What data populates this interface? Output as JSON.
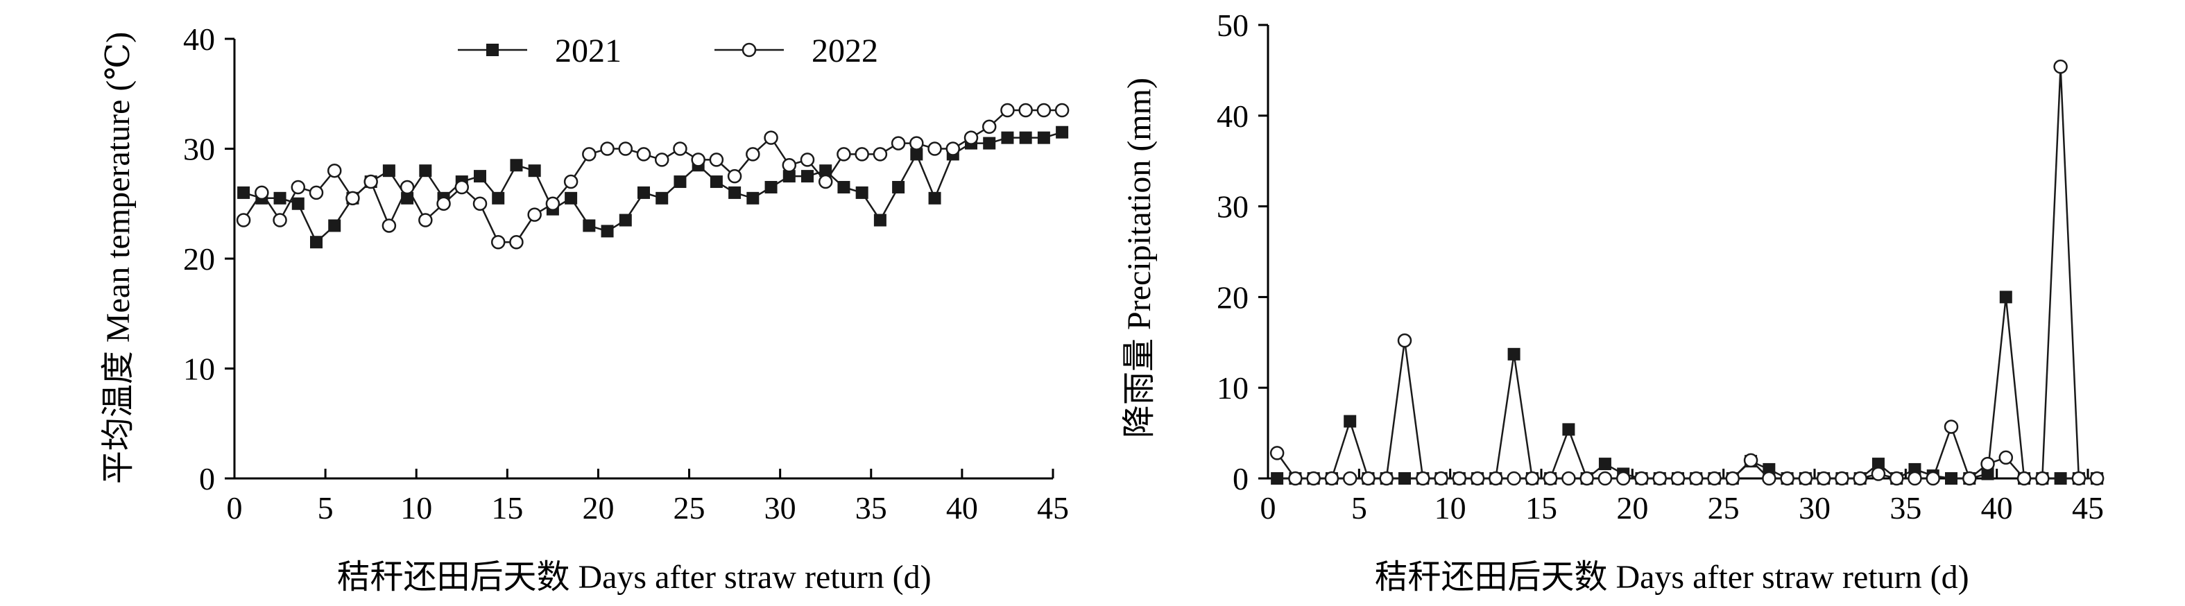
{
  "chart_data": [
    {
      "type": "line",
      "xlabel": "秸秆还田后天数 Days after straw return (d)",
      "ylabel": "平均温度 Mean temperature (℃)",
      "xlim": [
        0,
        45
      ],
      "ylim": [
        0,
        40
      ],
      "xticks": [
        0,
        5,
        10,
        15,
        20,
        25,
        30,
        35,
        40,
        45
      ],
      "yticks": [
        0,
        10,
        20,
        30,
        40
      ],
      "grid": false,
      "legend_position": "top",
      "x": [
        0.5,
        1.5,
        2.5,
        3.5,
        4.5,
        5.5,
        6.5,
        7.5,
        8.5,
        9.5,
        10.5,
        11.5,
        12.5,
        13.5,
        14.5,
        15.5,
        16.5,
        17.5,
        18.5,
        19.5,
        20.5,
        21.5,
        22.5,
        23.5,
        24.5,
        25.5,
        26.5,
        27.5,
        28.5,
        29.5,
        30.5,
        31.5,
        32.5,
        33.5,
        34.5,
        35.5,
        36.5,
        37.5,
        38.5,
        39.5,
        40.5,
        41.5,
        42.5,
        43.5,
        44.5,
        45.5
      ],
      "series": [
        {
          "name": "2021",
          "marker": "filled-square",
          "values": [
            26,
            25.5,
            25.5,
            25,
            21.5,
            23,
            25.5,
            27,
            28,
            25.5,
            28,
            25.5,
            27,
            27.5,
            25.5,
            28.5,
            28,
            24.5,
            25.5,
            23,
            22.5,
            23.5,
            26,
            25.5,
            27,
            28.5,
            27,
            26,
            25.5,
            26.5,
            27.5,
            27.5,
            28,
            26.5,
            26,
            23.5,
            26.5,
            29.5,
            25.5,
            29.5,
            30.5,
            30.5,
            31,
            31,
            31,
            31.5
          ]
        },
        {
          "name": "2022",
          "marker": "open-circle",
          "values": [
            23.5,
            26,
            23.5,
            26.5,
            26,
            28,
            25.5,
            27,
            23,
            26.5,
            23.5,
            25,
            26.5,
            25,
            21.5,
            21.5,
            24,
            25,
            27,
            29.5,
            30,
            30,
            29.5,
            29,
            30,
            29,
            29,
            27.5,
            29.5,
            31,
            28.5,
            29,
            27,
            29.5,
            29.5,
            29.5,
            30.5,
            30.5,
            30,
            30,
            31,
            32,
            33.5,
            33.5,
            33.5,
            33.5
          ]
        }
      ]
    },
    {
      "type": "line",
      "xlabel": "秸秆还田后天数 Days after straw return (d)",
      "ylabel": "降雨量 Precipitation (mm)",
      "xlim": [
        0,
        45
      ],
      "ylim": [
        0,
        50
      ],
      "xticks": [
        0,
        5,
        10,
        15,
        20,
        25,
        30,
        35,
        40,
        45
      ],
      "yticks": [
        0,
        10,
        20,
        30,
        40,
        50
      ],
      "grid": false,
      "x": [
        0.5,
        1.5,
        2.5,
        3.5,
        4.5,
        5.5,
        6.5,
        7.5,
        8.5,
        9.5,
        10.5,
        11.5,
        12.5,
        13.5,
        14.5,
        15.5,
        16.5,
        17.5,
        18.5,
        19.5,
        20.5,
        21.5,
        22.5,
        23.5,
        24.5,
        25.5,
        26.5,
        27.5,
        28.5,
        29.5,
        30.5,
        31.5,
        32.5,
        33.5,
        34.5,
        35.5,
        36.5,
        37.5,
        38.5,
        39.5,
        40.5,
        41.5,
        42.5,
        43.5,
        44.5,
        45.5
      ],
      "series": [
        {
          "name": "2021",
          "marker": "filled-square",
          "values": [
            0,
            0,
            0,
            0,
            6.3,
            0,
            0,
            0,
            0,
            0,
            0,
            0,
            0,
            13.7,
            0,
            0,
            5.4,
            0,
            1.6,
            0.5,
            0,
            0,
            0,
            0,
            0,
            0,
            1.9,
            1,
            0,
            0,
            0,
            0,
            0,
            1.6,
            0,
            1,
            0.3,
            0,
            0,
            0.5,
            20,
            0,
            0,
            0,
            0,
            0
          ]
        },
        {
          "name": "2022",
          "marker": "open-circle",
          "values": [
            2.8,
            0,
            0,
            0,
            0,
            0,
            0,
            15.2,
            0,
            0,
            0,
            0,
            0,
            0,
            0,
            0,
            0,
            0,
            0,
            0,
            0,
            0,
            0,
            0,
            0,
            0,
            2,
            0,
            0,
            0,
            0,
            0,
            0,
            0.5,
            0,
            0,
            0,
            5.7,
            0,
            1.6,
            2.3,
            0,
            0,
            45.4,
            0,
            0
          ]
        }
      ]
    }
  ]
}
